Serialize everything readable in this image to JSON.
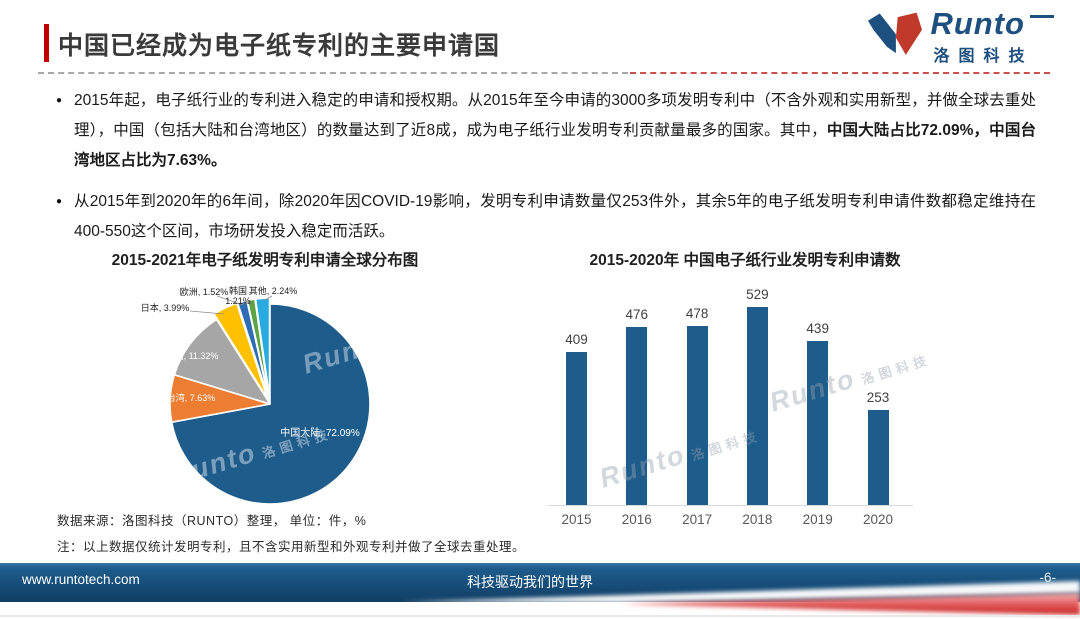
{
  "header": {
    "title": "中国已经成为电子纸专利的主要申请国",
    "logo_en": "Runto",
    "logo_cn": "洛图科技"
  },
  "bullet_glyph": "●",
  "bullets": [
    {
      "segments": [
        {
          "bold": false,
          "text": "2015年起，电子纸行业的专利进入稳定的申请和授权期。从2015年至今申请的3000多项发明专利中（不含外观和实用新型，并做全球去重处理），中国（包括大陆和台湾地区）的数量达到了近8成，成为电子纸行业发明专利贡献量最多的国家。其中，"
        },
        {
          "bold": true,
          "text": "中国大陆占比72.09%，中国台湾地区占比为7.63%。"
        }
      ]
    },
    {
      "segments": [
        {
          "bold": false,
          "text": "从2015年到2020年的6年间，除2020年因COVID-19影响，发明专利申请数量仅253件外，其余5年的电子纸发明专利申请件数都稳定维持在400-550这个区间，市场研发投入稳定而活跃。"
        }
      ]
    }
  ],
  "chart_data": [
    {
      "type": "pie",
      "title": "2015-2021年电子纸发明专利申请全球分布图",
      "unit": "%",
      "legend_position": "none",
      "slices": [
        {
          "name": "中国大陆",
          "value": 72.09,
          "color": "#1E5C8C",
          "label_text": "中国大陆, 72.09%",
          "label_inside": true,
          "exploded": false
        },
        {
          "name": "中国台湾",
          "value": 7.63,
          "color": "#ED7D31",
          "label_text": "中国台湾, 7.63%",
          "label_inside": true,
          "exploded": false
        },
        {
          "name": "美国",
          "value": 11.32,
          "color": "#A6A6A6",
          "label_text": "美国, 11.32%",
          "label_inside": true,
          "exploded": false
        },
        {
          "name": "日本",
          "value": 3.99,
          "color": "#FFC000",
          "label_text": "日本, 3.99%",
          "label_inside": false,
          "exploded": true
        },
        {
          "name": "欧洲",
          "value": 1.52,
          "color": "#2E6DB4",
          "label_text": "欧洲, 1.52%",
          "label_inside": false,
          "exploded": true
        },
        {
          "name": "韩国",
          "value": 1.21,
          "color": "#5BA344",
          "label_text": "韩国\n1.21%",
          "label_inside": false,
          "exploded": true
        },
        {
          "name": "其他",
          "value": 2.24,
          "color": "#29ABE2",
          "label_text": "其他, 2.24%",
          "label_inside": false,
          "exploded": true
        }
      ]
    },
    {
      "type": "bar",
      "title": "2015-2020年  中国电子纸行业发明专利申请数",
      "categories": [
        "2015",
        "2016",
        "2017",
        "2018",
        "2019",
        "2020"
      ],
      "values": [
        409,
        476,
        478,
        529,
        439,
        253
      ],
      "bar_color": "#1E5C8C",
      "ylim": [
        0,
        560
      ],
      "grid": false,
      "value_labels": true,
      "xlabel": "",
      "ylabel": ""
    }
  ],
  "notes": {
    "source": "数据来源：洛图科技（RUNTO）整理，  单位：件，%",
    "note": "注：以上数据仅统计发明专利，且不含实用新型和外观专利并做了全球去重处理。"
  },
  "footer": {
    "website": "www.runtotech.com",
    "slogan": "科技驱动我们的世界",
    "page_number": "-6-"
  },
  "watermark": {
    "en": "Runto",
    "cn": "洛图科技"
  },
  "colors": {
    "accent_red": "#C00000",
    "brand_blue": "#1D4F7F",
    "footer_blue": "#164C78"
  }
}
